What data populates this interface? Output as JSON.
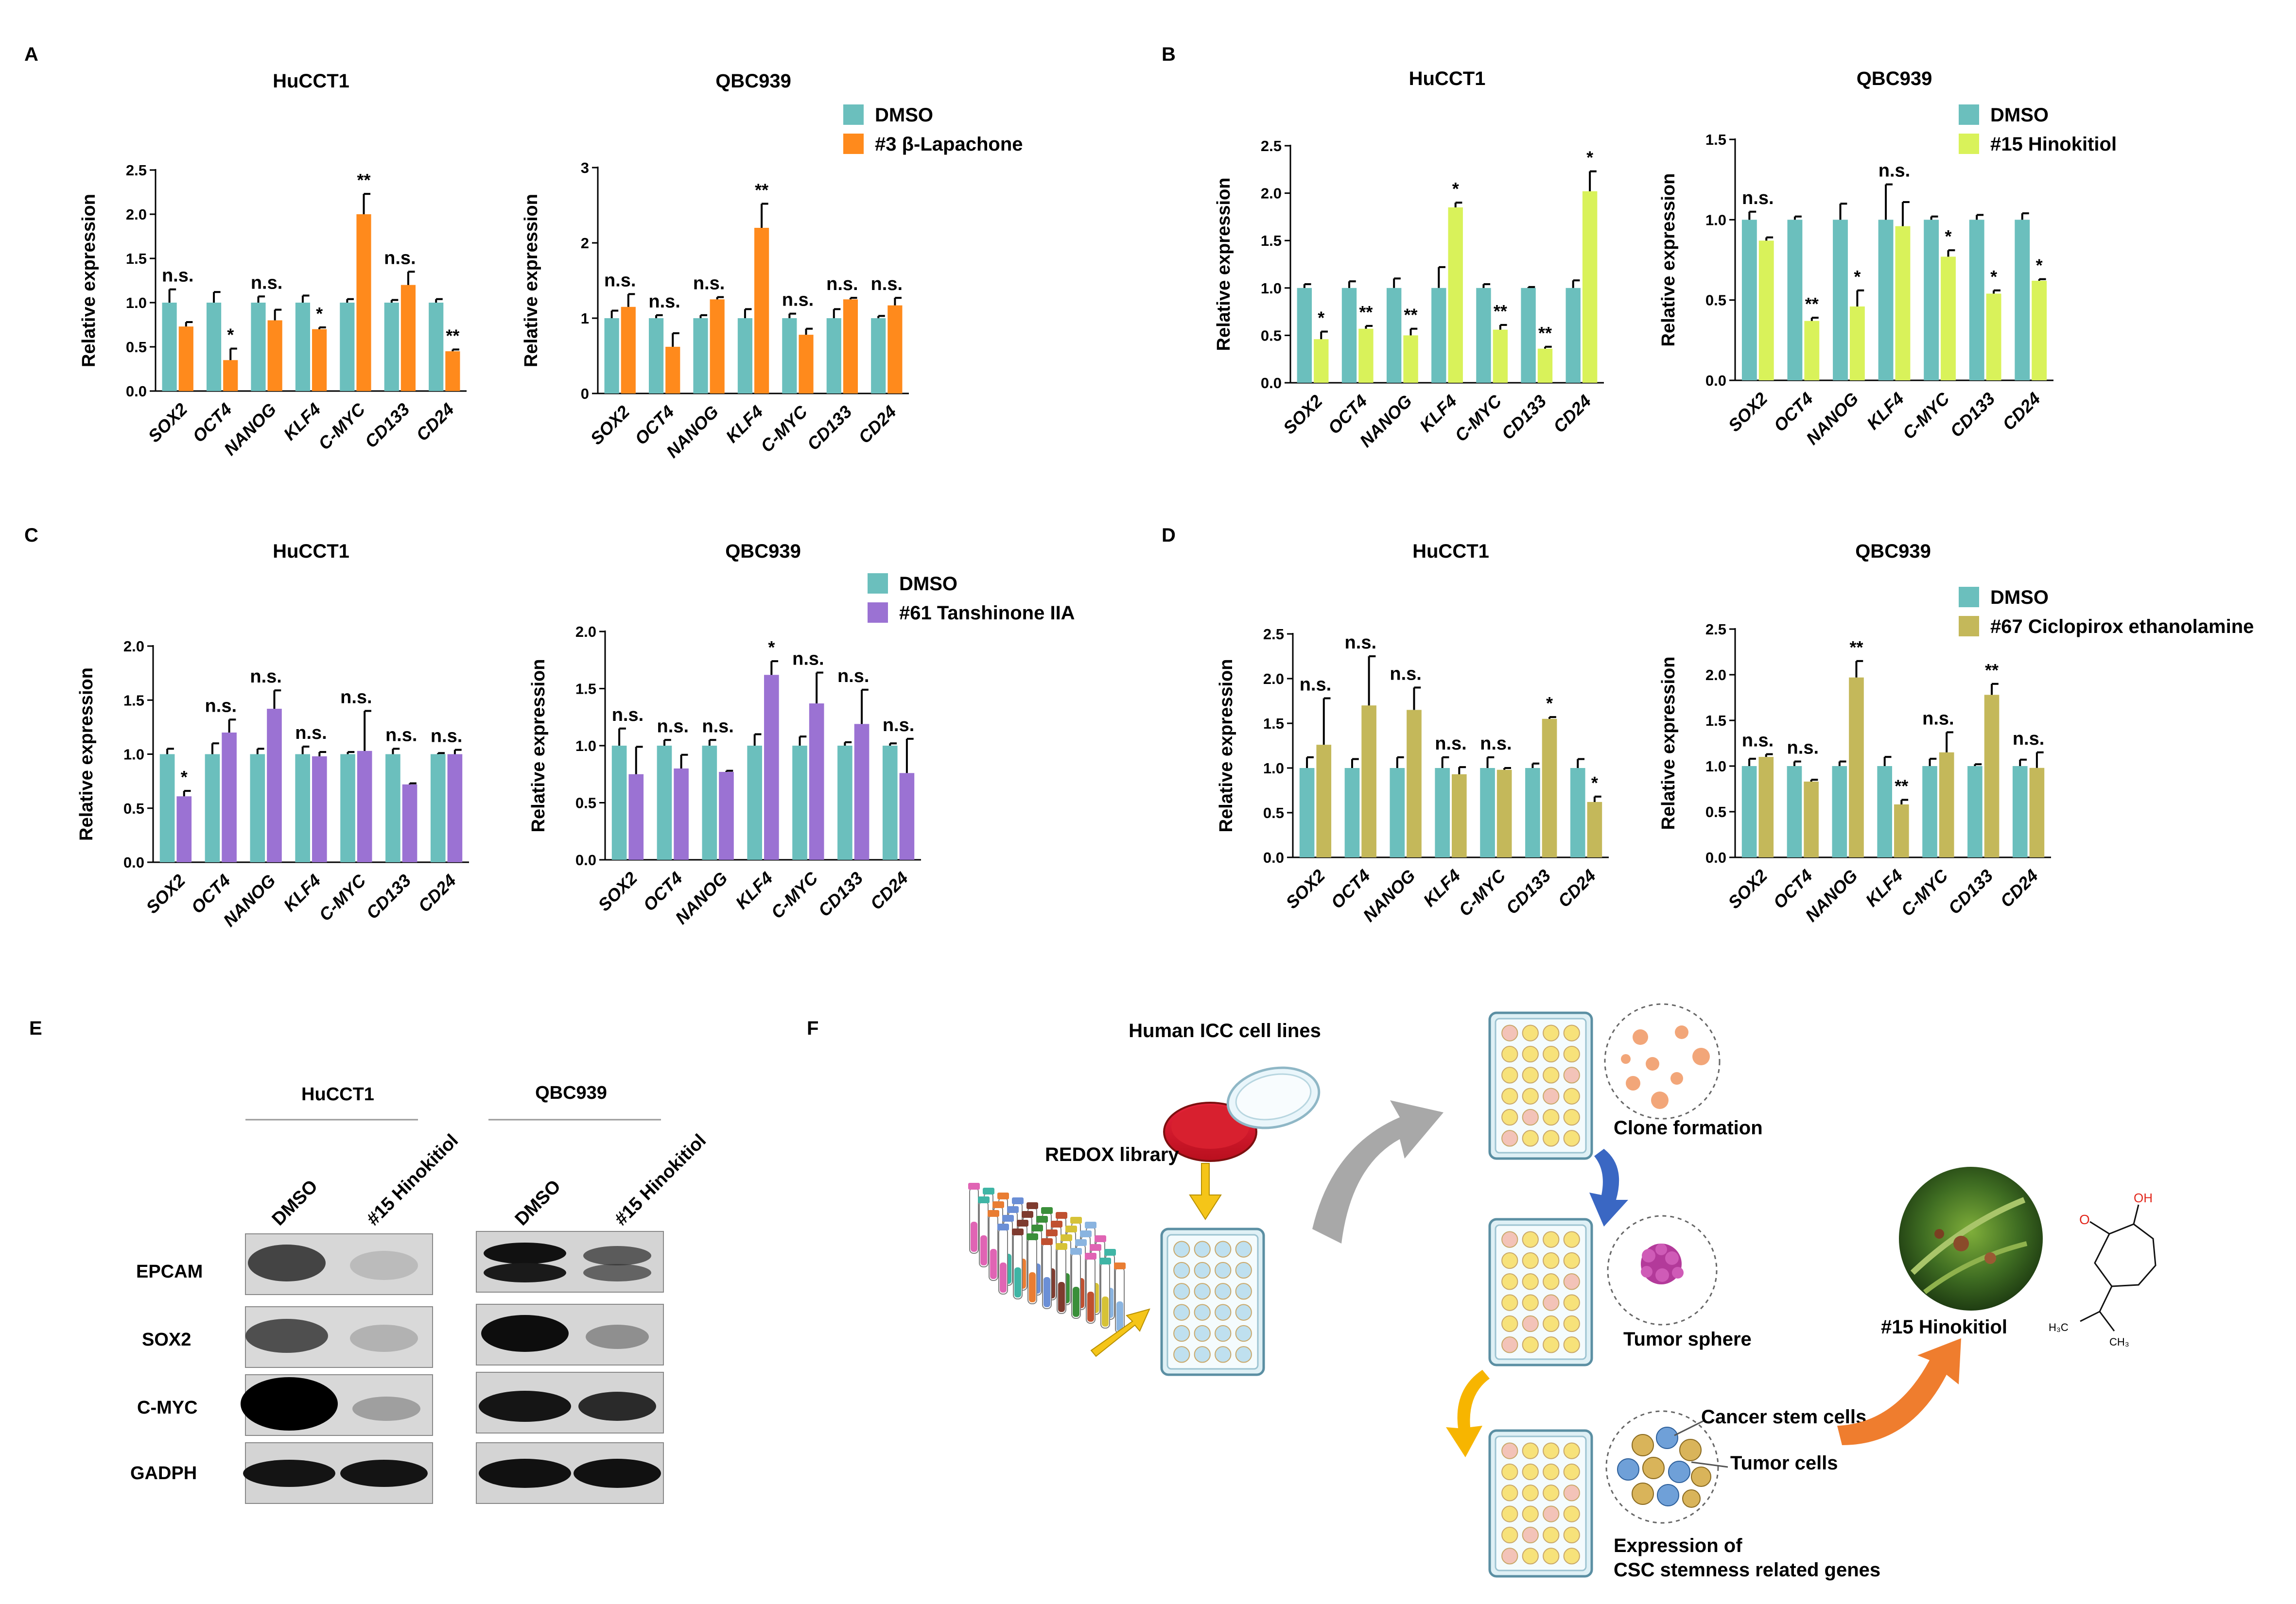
{
  "panels": {
    "A": "A",
    "B": "B",
    "C": "C",
    "D": "D",
    "E": "E",
    "F": "F"
  },
  "colors": {
    "dmso": "#6bbfbd",
    "lapachone": "#ff8a1c",
    "hinokitiol": "#d9f25a",
    "tanshinone": "#9b72d3",
    "ciclopirox": "#c4b85a",
    "error": "#000000"
  },
  "genes": [
    "SOX2",
    "OCT4",
    "NANOG",
    "KLF4",
    "C-MYC",
    "CD133",
    "CD24"
  ],
  "chart_data": [
    {
      "panel": "A",
      "type": "bar",
      "title": "HuCCT1",
      "ylabel": "Relative expression",
      "categories": [
        "SOX2",
        "OCT4",
        "NANOG",
        "KLF4",
        "C-MYC",
        "CD133",
        "CD24"
      ],
      "ylim": [
        0,
        2.5
      ],
      "ticks": [
        "0.0",
        "0.5",
        "1.0",
        "1.5",
        "2.0",
        "2.5"
      ],
      "treat_color": "lapachone",
      "series": [
        {
          "values": [
            1.0,
            1.0,
            1.0,
            1.0,
            1.0,
            1.0,
            1.0
          ],
          "errors": [
            0.15,
            0.12,
            0.07,
            0.08,
            0.04,
            0.03,
            0.04
          ]
        },
        {
          "values": [
            0.73,
            0.35,
            0.8,
            0.7,
            2.0,
            1.2,
            0.45
          ],
          "errors": [
            0.05,
            0.13,
            0.12,
            0.02,
            0.23,
            0.15,
            0.02
          ]
        }
      ],
      "annotations": [
        "n.s.",
        "*",
        "n.s.",
        "*",
        "**",
        "n.s.",
        "**"
      ]
    },
    {
      "panel": "A",
      "type": "bar",
      "title": "QBC939",
      "ylabel": "Relative expression",
      "categories": [
        "SOX2",
        "OCT4",
        "NANOG",
        "KLF4",
        "C-MYC",
        "CD133",
        "CD24"
      ],
      "ylim": [
        0,
        3
      ],
      "ticks": [
        "0",
        "1",
        "2",
        "3"
      ],
      "treat_color": "lapachone",
      "series": [
        {
          "values": [
            1.0,
            1.0,
            1.0,
            1.0,
            1.0,
            1.0,
            1.0
          ],
          "errors": [
            0.1,
            0.04,
            0.04,
            0.12,
            0.06,
            0.12,
            0.03
          ]
        },
        {
          "values": [
            1.15,
            0.62,
            1.25,
            2.2,
            0.78,
            1.25,
            1.17
          ],
          "errors": [
            0.17,
            0.18,
            0.03,
            0.32,
            0.08,
            0.02,
            0.1
          ]
        }
      ],
      "annotations": [
        "n.s.",
        "n.s.",
        "n.s.",
        "**",
        "n.s.",
        "n.s.",
        "n.s."
      ],
      "legend": {
        "items": [
          "DMSO",
          "#3 β-Lapachone"
        ],
        "placement": "top-right"
      }
    },
    {
      "panel": "B",
      "type": "bar",
      "title": "HuCCT1",
      "ylabel": "Relative expression",
      "categories": [
        "SOX2",
        "OCT4",
        "NANOG",
        "KLF4",
        "C-MYC",
        "CD133",
        "CD24"
      ],
      "ylim": [
        0,
        2.5
      ],
      "ticks": [
        "0.0",
        "0.5",
        "1.0",
        "1.5",
        "2.0",
        "2.5"
      ],
      "treat_color": "hinokitiol",
      "series": [
        {
          "values": [
            1.0,
            1.0,
            1.0,
            1.0,
            1.0,
            1.0,
            1.0
          ],
          "errors": [
            0.04,
            0.07,
            0.1,
            0.22,
            0.04,
            0.01,
            0.08
          ]
        },
        {
          "values": [
            0.46,
            0.57,
            0.5,
            1.85,
            0.56,
            0.36,
            2.02
          ],
          "errors": [
            0.08,
            0.03,
            0.07,
            0.05,
            0.05,
            0.02,
            0.21
          ]
        }
      ],
      "annotations": [
        "*",
        "**",
        "**",
        "*",
        "**",
        "**",
        "*"
      ]
    },
    {
      "panel": "B",
      "type": "bar",
      "title": "QBC939",
      "ylabel": "Relative expression",
      "categories": [
        "SOX2",
        "OCT4",
        "NANOG",
        "KLF4",
        "C-MYC",
        "CD133",
        "CD24"
      ],
      "ylim": [
        0,
        1.5
      ],
      "ticks": [
        "0.0",
        "0.5",
        "1.0",
        "1.5"
      ],
      "treat_color": "hinokitiol",
      "series": [
        {
          "values": [
            1.0,
            1.0,
            1.0,
            1.0,
            1.0,
            1.0,
            1.0
          ],
          "errors": [
            0.05,
            0.02,
            0.1,
            0.22,
            0.02,
            0.03,
            0.04
          ]
        },
        {
          "values": [
            0.87,
            0.37,
            0.46,
            0.96,
            0.77,
            0.54,
            0.62
          ],
          "errors": [
            0.02,
            0.02,
            0.1,
            0.15,
            0.04,
            0.02,
            0.01
          ]
        }
      ],
      "annotations": [
        "n.s.",
        "**",
        "*",
        "n.s.",
        "*",
        "*",
        "*"
      ],
      "legend": {
        "items": [
          "DMSO",
          "#15 Hinokitiol"
        ],
        "placement": "top-right"
      }
    },
    {
      "panel": "C",
      "type": "bar",
      "title": "HuCCT1",
      "ylabel": "Relative expression",
      "categories": [
        "SOX2",
        "OCT4",
        "NANOG",
        "KLF4",
        "C-MYC",
        "CD133",
        "CD24"
      ],
      "ylim": [
        0,
        2.0
      ],
      "ticks": [
        "0.0",
        "0.5",
        "1.0",
        "1.5",
        "2.0"
      ],
      "treat_color": "tanshinone",
      "series": [
        {
          "values": [
            1.0,
            1.0,
            1.0,
            1.0,
            1.0,
            1.0,
            1.0
          ],
          "errors": [
            0.05,
            0.1,
            0.05,
            0.07,
            0.02,
            0.05,
            0.01
          ]
        },
        {
          "values": [
            0.61,
            1.2,
            1.42,
            0.98,
            1.03,
            0.72,
            1.0
          ],
          "errors": [
            0.05,
            0.12,
            0.17,
            0.04,
            0.37,
            0.01,
            0.04
          ]
        }
      ],
      "annotations": [
        "*",
        "n.s.",
        "n.s.",
        "n.s.",
        "n.s.",
        "n.s.",
        "n.s."
      ]
    },
    {
      "panel": "C",
      "type": "bar",
      "title": "QBC939",
      "ylabel": "Relative expression",
      "categories": [
        "SOX2",
        "OCT4",
        "NANOG",
        "KLF4",
        "C-MYC",
        "CD133",
        "CD24"
      ],
      "ylim": [
        0,
        2.0
      ],
      "ticks": [
        "0.0",
        "0.5",
        "1.0",
        "1.5",
        "2.0"
      ],
      "treat_color": "tanshinone",
      "series": [
        {
          "values": [
            1.0,
            1.0,
            1.0,
            1.0,
            1.0,
            1.0,
            1.0
          ],
          "errors": [
            0.15,
            0.05,
            0.05,
            0.1,
            0.08,
            0.03,
            0.02
          ]
        },
        {
          "values": [
            0.75,
            0.8,
            0.77,
            1.62,
            1.37,
            1.19,
            0.76
          ],
          "errors": [
            0.24,
            0.12,
            0.01,
            0.12,
            0.27,
            0.3,
            0.3
          ]
        }
      ],
      "annotations": [
        "n.s.",
        "n.s.",
        "n.s.",
        "*",
        "n.s.",
        "n.s.",
        "n.s."
      ],
      "legend": {
        "items": [
          "DMSO",
          "#61 Tanshinone IIA"
        ],
        "placement": "top-right"
      }
    },
    {
      "panel": "D",
      "type": "bar",
      "title": "HuCCT1",
      "ylabel": "Relative expression",
      "categories": [
        "SOX2",
        "OCT4",
        "NANOG",
        "KLF4",
        "C-MYC",
        "CD133",
        "CD24"
      ],
      "ylim": [
        0,
        2.5
      ],
      "ticks": [
        "0.0",
        "0.5",
        "1.0",
        "1.5",
        "2.0",
        "2.5"
      ],
      "treat_color": "ciclopirox",
      "series": [
        {
          "values": [
            1.0,
            1.0,
            1.0,
            1.0,
            1.0,
            1.0,
            1.0
          ],
          "errors": [
            0.12,
            0.1,
            0.12,
            0.12,
            0.12,
            0.05,
            0.1
          ]
        },
        {
          "values": [
            1.26,
            1.7,
            1.65,
            0.93,
            0.98,
            1.55,
            0.62
          ],
          "errors": [
            0.52,
            0.55,
            0.25,
            0.08,
            0.02,
            0.02,
            0.06
          ]
        }
      ],
      "annotations": [
        "n.s.",
        "n.s.",
        "n.s.",
        "n.s.",
        "n.s.",
        "*",
        "*"
      ]
    },
    {
      "panel": "D",
      "type": "bar",
      "title": "QBC939",
      "ylabel": "Relative expression",
      "categories": [
        "SOX2",
        "OCT4",
        "NANOG",
        "KLF4",
        "C-MYC",
        "CD133",
        "CD24"
      ],
      "ylim": [
        0,
        2.5
      ],
      "ticks": [
        "0.0",
        "0.5",
        "1.0",
        "1.5",
        "2.0",
        "2.5"
      ],
      "treat_color": "ciclopirox",
      "series": [
        {
          "values": [
            1.0,
            1.0,
            1.0,
            1.0,
            1.0,
            1.0,
            1.0
          ],
          "errors": [
            0.08,
            0.05,
            0.05,
            0.1,
            0.08,
            0.02,
            0.07
          ]
        },
        {
          "values": [
            1.1,
            0.83,
            1.97,
            0.58,
            1.15,
            1.78,
            0.98
          ],
          "errors": [
            0.03,
            0.02,
            0.18,
            0.05,
            0.22,
            0.12,
            0.17
          ]
        }
      ],
      "annotations": [
        "n.s.",
        "n.s.",
        "**",
        "**",
        "n.s.",
        "**",
        "n.s."
      ],
      "legend": {
        "items": [
          "DMSO",
          "#67 Ciclopirox ethanolamine"
        ],
        "placement": "top-right"
      }
    }
  ],
  "western": {
    "cell_lines": [
      "HuCCT1",
      "QBC939"
    ],
    "lanes": [
      "DMSO",
      "#15 Hinokitiol"
    ],
    "rows": [
      "EPCAM",
      "SOX2",
      "C-MYC",
      "GADPH"
    ]
  },
  "schematic": {
    "title": "Human ICC cell lines",
    "library": "REDOX library",
    "clone": "Clone formation",
    "sphere": "Tumor sphere",
    "expression_line1": "Expression of",
    "expression_line2": "CSC stemness related genes",
    "cancer_stem": "Cancer stem cells",
    "tumor_cells": "Tumor cells",
    "compound": "#15 Hinokitiol",
    "chem_oh": "OH",
    "chem_o": "O",
    "chem_h3c": "H₃C",
    "chem_ch3": "CH₃"
  }
}
